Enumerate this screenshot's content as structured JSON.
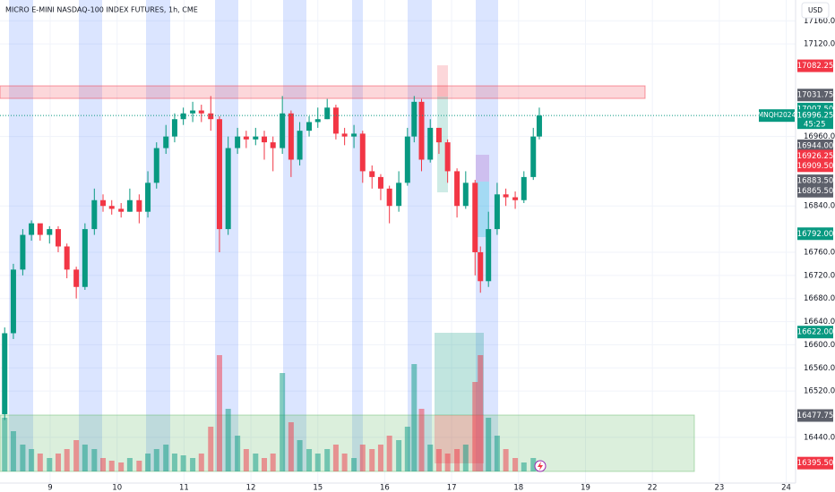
{
  "chart_data": {
    "type": "candlestick",
    "title": "MICRO E-MINI NASDAQ-100 INDEX FUTURES, 1h, CME",
    "currency": "USD",
    "symbol_tag": "MNQH2024",
    "countdown": "45:25",
    "up_color": "#089981",
    "down_color": "#f23645",
    "grid": true,
    "xlim": [
      -0.75,
      11.14
    ],
    "ylim": [
      16361,
      17196
    ],
    "vlim": [
      0,
      130
    ],
    "xticks": [
      {
        "value": 0,
        "label": "9"
      },
      {
        "value": 1,
        "label": "10"
      },
      {
        "value": 2,
        "label": "11"
      },
      {
        "value": 3,
        "label": "12"
      },
      {
        "value": 4,
        "label": "15"
      },
      {
        "value": 5,
        "label": "16"
      },
      {
        "value": 6,
        "label": "17"
      },
      {
        "value": 7,
        "label": "18"
      },
      {
        "value": 8,
        "label": "19"
      },
      {
        "value": 9,
        "label": "22"
      },
      {
        "value": 10,
        "label": "23"
      },
      {
        "value": 11,
        "label": "24"
      }
    ],
    "yticks": [
      {
        "value": 17160,
        "label": "17160.00"
      },
      {
        "value": 17120,
        "label": "17120.00"
      },
      {
        "value": 16960,
        "label": "16960.00"
      },
      {
        "value": 16840,
        "label": "16840.00"
      },
      {
        "value": 16760,
        "label": "16760.00"
      },
      {
        "value": 16720,
        "label": "16720.00"
      },
      {
        "value": 16680,
        "label": "16680.00"
      },
      {
        "value": 16640,
        "label": "16640.00"
      },
      {
        "value": 16600,
        "label": "16600.00"
      },
      {
        "value": 16560,
        "label": "16560.00"
      },
      {
        "value": 16520,
        "label": "16520.00"
      },
      {
        "value": 16440,
        "label": "16440.00"
      }
    ],
    "price_badges": [
      {
        "value": 17082.25,
        "label": "17082.25",
        "color": "#f23645"
      },
      {
        "value": 17031.75,
        "label": "17031.75",
        "color": "#5d606b"
      },
      {
        "value": 17007.5,
        "label": "17007.50",
        "color": "#089981"
      },
      {
        "value": 16996.25,
        "label": "16996.25",
        "color": "#089981"
      },
      {
        "value": 16944,
        "label": "16944.00",
        "color": "#5d606b"
      },
      {
        "value": 16926.25,
        "label": "16926.25",
        "color": "#f23645"
      },
      {
        "value": 16909.5,
        "label": "16909.50",
        "color": "#f23645"
      },
      {
        "value": 16883.5,
        "label": "16883.50",
        "color": "#5d606b"
      },
      {
        "value": 16865.5,
        "label": "16865.50",
        "color": "#5d606b"
      },
      {
        "value": 16792,
        "label": "16792.00",
        "color": "#089981"
      },
      {
        "value": 16622,
        "label": "16622.00",
        "color": "#089981"
      },
      {
        "value": 16477.75,
        "label": "16477.75",
        "color": "#5d606b"
      },
      {
        "value": 16395.5,
        "label": "16395.50",
        "color": "#f23645"
      }
    ],
    "candles": {
      "x": [
        -0.68,
        -0.55,
        -0.41,
        -0.28,
        -0.15,
        -0.01,
        0.12,
        0.25,
        0.39,
        0.52,
        0.66,
        0.79,
        0.92,
        1.06,
        1.19,
        1.33,
        1.46,
        1.59,
        1.73,
        1.86,
        1.99,
        2.13,
        2.26,
        2.4,
        2.53,
        2.66,
        2.8,
        2.93,
        3.07,
        3.2,
        3.33,
        3.47,
        3.6,
        3.73,
        3.87,
        4.0,
        4.14,
        4.27,
        4.4,
        4.54,
        4.67,
        4.81,
        4.94,
        5.07,
        5.21,
        5.34,
        5.44,
        5.55,
        5.68,
        5.81,
        5.94,
        6.08,
        6.21,
        6.35,
        6.43,
        6.55,
        6.68,
        6.81,
        6.95,
        7.08,
        7.22,
        7.31
      ],
      "open": [
        16480,
        16620,
        16730,
        16790,
        16810,
        16790,
        16800,
        16770,
        16730,
        16700,
        16800,
        16850,
        16840,
        16835,
        16830,
        16850,
        16830,
        16880,
        16940,
        16960,
        16990,
        17000,
        17005,
        17000,
        16990,
        16800,
        16940,
        16960,
        16955,
        16960,
        16950,
        16940,
        17000,
        16920,
        16970,
        16985,
        16990,
        17010,
        16965,
        16960,
        16965,
        16900,
        16890,
        16870,
        16840,
        16880,
        16960,
        17020,
        16920,
        16975,
        16950,
        16900,
        16840,
        16880,
        16760,
        16710,
        16800,
        16860,
        16855,
        16850,
        16890,
        16960
      ],
      "high": [
        16630,
        16740,
        16800,
        16815,
        16805,
        16805,
        16805,
        16775,
        16735,
        16810,
        16870,
        16860,
        16850,
        16845,
        16870,
        16860,
        16900,
        16950,
        16980,
        17000,
        17010,
        17020,
        17015,
        17030,
        16995,
        16960,
        16975,
        16970,
        16975,
        16970,
        16960,
        17030,
        17005,
        16985,
        16995,
        17010,
        17025,
        17015,
        16975,
        16980,
        16970,
        16910,
        16895,
        16875,
        16900,
        16975,
        17030,
        17025,
        16990,
        16975,
        16955,
        16905,
        16900,
        16885,
        16770,
        16830,
        16880,
        16870,
        16865,
        16900,
        16975,
        17010
      ],
      "low": [
        16470,
        16610,
        16720,
        16780,
        16780,
        16775,
        16760,
        16715,
        16680,
        16695,
        16790,
        16830,
        16825,
        16820,
        16830,
        16810,
        16820,
        16870,
        16930,
        16950,
        16980,
        16985,
        16985,
        16970,
        16760,
        16790,
        16930,
        16940,
        16945,
        16920,
        16900,
        16930,
        16890,
        16910,
        16960,
        16975,
        16990,
        16955,
        16945,
        16940,
        16880,
        16870,
        16850,
        16810,
        16830,
        16875,
        16950,
        16900,
        16915,
        16930,
        16880,
        16820,
        16835,
        16720,
        16690,
        16700,
        16790,
        16840,
        16835,
        16845,
        16885,
        16955
      ],
      "close": [
        16620,
        16730,
        16790,
        16810,
        16790,
        16800,
        16770,
        16730,
        16700,
        16800,
        16850,
        16840,
        16835,
        16830,
        16850,
        16830,
        16880,
        16940,
        16960,
        16990,
        17000,
        17005,
        17000,
        16990,
        16800,
        16940,
        16960,
        16955,
        16960,
        16950,
        16940,
        17000,
        16920,
        16970,
        16985,
        16990,
        17010,
        16965,
        16960,
        16965,
        16900,
        16890,
        16870,
        16840,
        16880,
        16960,
        17020,
        16920,
        16975,
        16950,
        16900,
        16840,
        16880,
        16760,
        16710,
        16800,
        16860,
        16855,
        16850,
        16890,
        16960,
        16996.25
      ],
      "volume": [
        60,
        45,
        30,
        25,
        20,
        15,
        20,
        25,
        35,
        30,
        25,
        15,
        12,
        10,
        15,
        12,
        20,
        25,
        30,
        20,
        18,
        15,
        20,
        50,
        130,
        70,
        40,
        25,
        20,
        15,
        20,
        110,
        55,
        35,
        25,
        20,
        25,
        30,
        20,
        15,
        30,
        25,
        30,
        40,
        35,
        50,
        120,
        70,
        30,
        25,
        20,
        25,
        30,
        100,
        130,
        60,
        40,
        25,
        15,
        10,
        15,
        12
      ]
    }
  }
}
